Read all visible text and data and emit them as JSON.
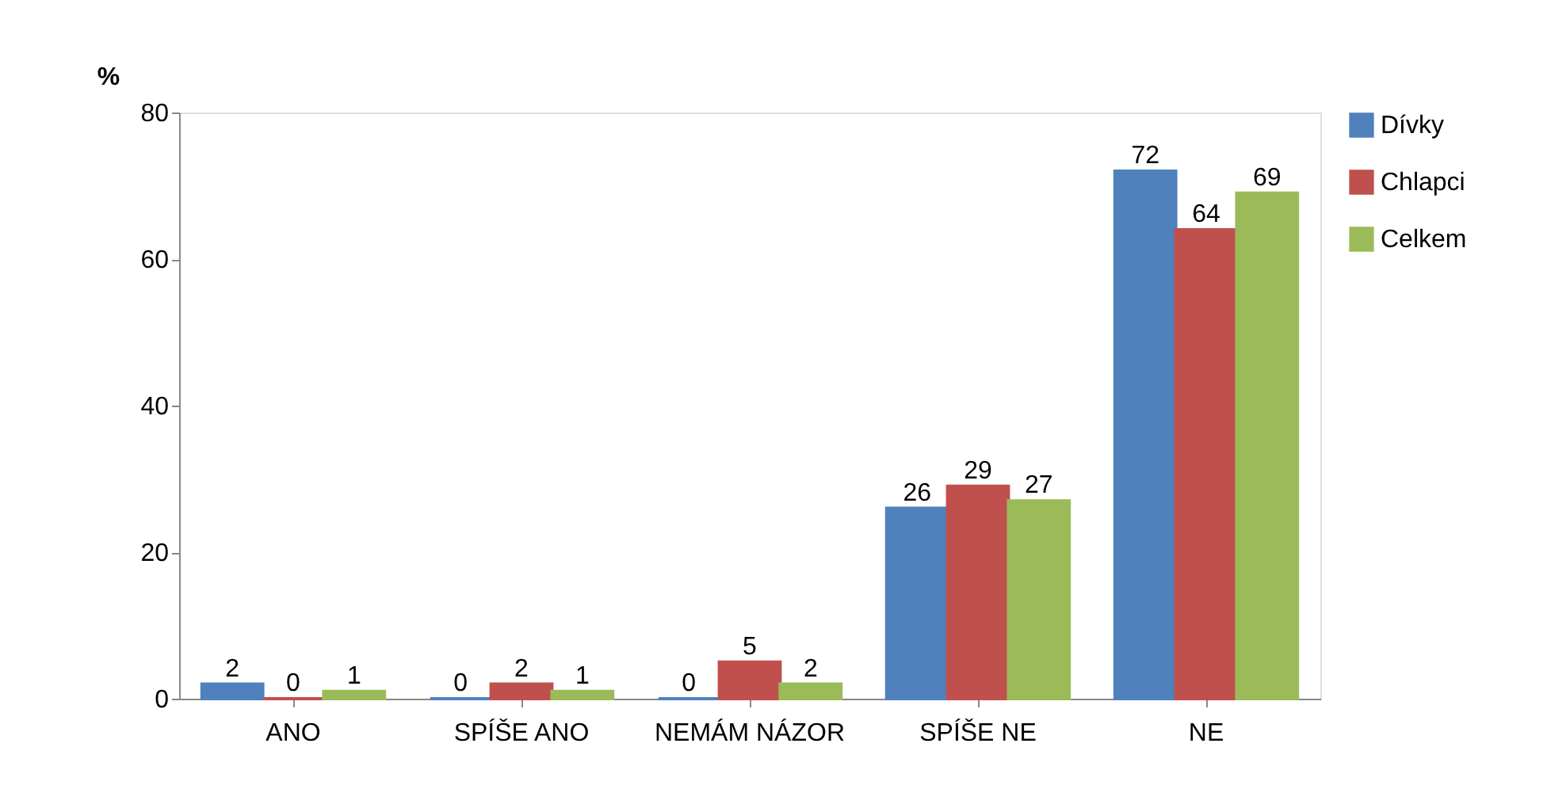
{
  "chart_data": {
    "type": "bar",
    "ylabel": "%",
    "categories": [
      "ANO",
      "SPÍŠE ANO",
      "NEMÁM NÁZOR",
      "SPÍŠE NE",
      "NE"
    ],
    "series": [
      {
        "name": "Dívky",
        "color": "#4f81bd",
        "values": [
          2,
          0,
          0,
          26,
          72
        ]
      },
      {
        "name": "Chlapci",
        "color": "#c0504d",
        "values": [
          0,
          2,
          5,
          29,
          64
        ]
      },
      {
        "name": "Celkem",
        "color": "#9bbb59",
        "values": [
          1,
          1,
          2,
          27,
          69
        ]
      }
    ],
    "ylim": [
      0,
      80
    ],
    "yticks": [
      0,
      20,
      40,
      60,
      80
    ],
    "grid": false,
    "legend": "right",
    "data_labels": true
  }
}
